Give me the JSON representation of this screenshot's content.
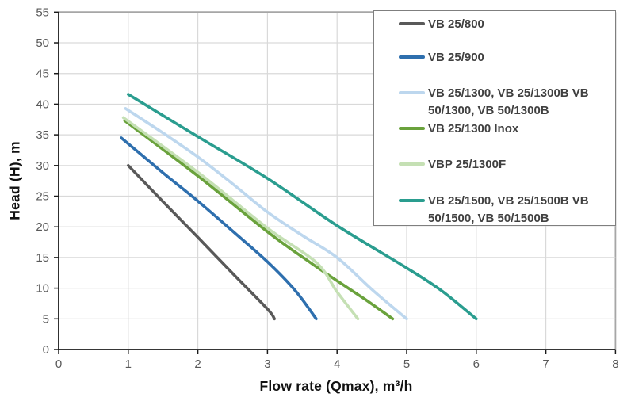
{
  "chart_data": {
    "type": "line",
    "title": "",
    "xlabel": "Flow rate (Qmax), m³/h",
    "ylabel": "Head (H), m",
    "xlim": [
      0,
      8
    ],
    "ylim": [
      0,
      55
    ],
    "x_ticks": [
      0,
      1,
      2,
      3,
      4,
      5,
      6,
      7,
      8
    ],
    "y_ticks": [
      0,
      5,
      10,
      15,
      20,
      25,
      30,
      35,
      40,
      45,
      50,
      55
    ],
    "grid": true,
    "legend_position": "top-right",
    "series": [
      {
        "name": "VB 25/800",
        "legend_lines": [
          "VB 25/800"
        ],
        "color": "#595959",
        "points": [
          [
            1,
            30
          ],
          [
            1.5,
            24.1
          ],
          [
            2,
            18.3
          ],
          [
            2.5,
            12.4
          ],
          [
            3,
            6.6
          ],
          [
            3.1,
            5
          ]
        ]
      },
      {
        "name": "VB 25/900",
        "legend_lines": [
          "VB 25/900"
        ],
        "color": "#2e6fae",
        "points": [
          [
            0.9,
            34.5
          ],
          [
            1.5,
            28.8
          ],
          [
            2,
            24.2
          ],
          [
            2.5,
            19.3
          ],
          [
            3,
            14.3
          ],
          [
            3.4,
            9.6
          ],
          [
            3.7,
            5
          ]
        ]
      },
      {
        "name": "VB 25/1300, VB 25/1300B   VB 50/1300, VB 50/1300B",
        "legend_lines": [
          "VB 25/1300, VB 25/1300B   VB",
          "50/1300, VB 50/1300B"
        ],
        "color": "#bdd7ee",
        "points": [
          [
            0.96,
            39.3
          ],
          [
            1.5,
            35.3
          ],
          [
            2,
            31.4
          ],
          [
            2.5,
            27
          ],
          [
            3,
            22.4
          ],
          [
            3.5,
            18.6
          ],
          [
            4,
            15
          ],
          [
            4.5,
            9.8
          ],
          [
            5,
            5
          ]
        ]
      },
      {
        "name": "VB 25/1300 Inox",
        "legend_lines": [
          "VB 25/1300 Inox"
        ],
        "color": "#6aa23c",
        "points": [
          [
            0.95,
            37.3
          ],
          [
            2,
            28.3
          ],
          [
            3,
            19.2
          ],
          [
            3.6,
            14.3
          ],
          [
            4,
            11.2
          ],
          [
            4.4,
            8.2
          ],
          [
            4.8,
            5
          ]
        ]
      },
      {
        "name": "VBP 25/1300F",
        "legend_lines": [
          "VBP 25/1300F"
        ],
        "color": "#c5e0b4",
        "points": [
          [
            0.93,
            37.8
          ],
          [
            2,
            28.9
          ],
          [
            3,
            19.8
          ],
          [
            3.7,
            14.2
          ],
          [
            4,
            9.4
          ],
          [
            4.3,
            5
          ]
        ]
      },
      {
        "name": "VB 25/1500, VB 25/1500B VB 50/1500, VB 50/1500B",
        "legend_lines": [
          "VB 25/1500, VB 25/1500B VB",
          "50/1500, VB 50/1500B"
        ],
        "color": "#2a9d8f",
        "points": [
          [
            1,
            41.6
          ],
          [
            2,
            34.7
          ],
          [
            3,
            27.9
          ],
          [
            4,
            20.2
          ],
          [
            5,
            13.3
          ],
          [
            5.5,
            9.6
          ],
          [
            6,
            5
          ]
        ]
      }
    ],
    "style": {
      "grid_color": "#d9d9d9",
      "axis_color": "#1a1a1a",
      "frame_color": "#a6a6a6",
      "tick_label_color": "#595959",
      "legend_border_color": "#7f7f7f",
      "legend_text_color": "#404040",
      "line_width": 3.6
    }
  }
}
